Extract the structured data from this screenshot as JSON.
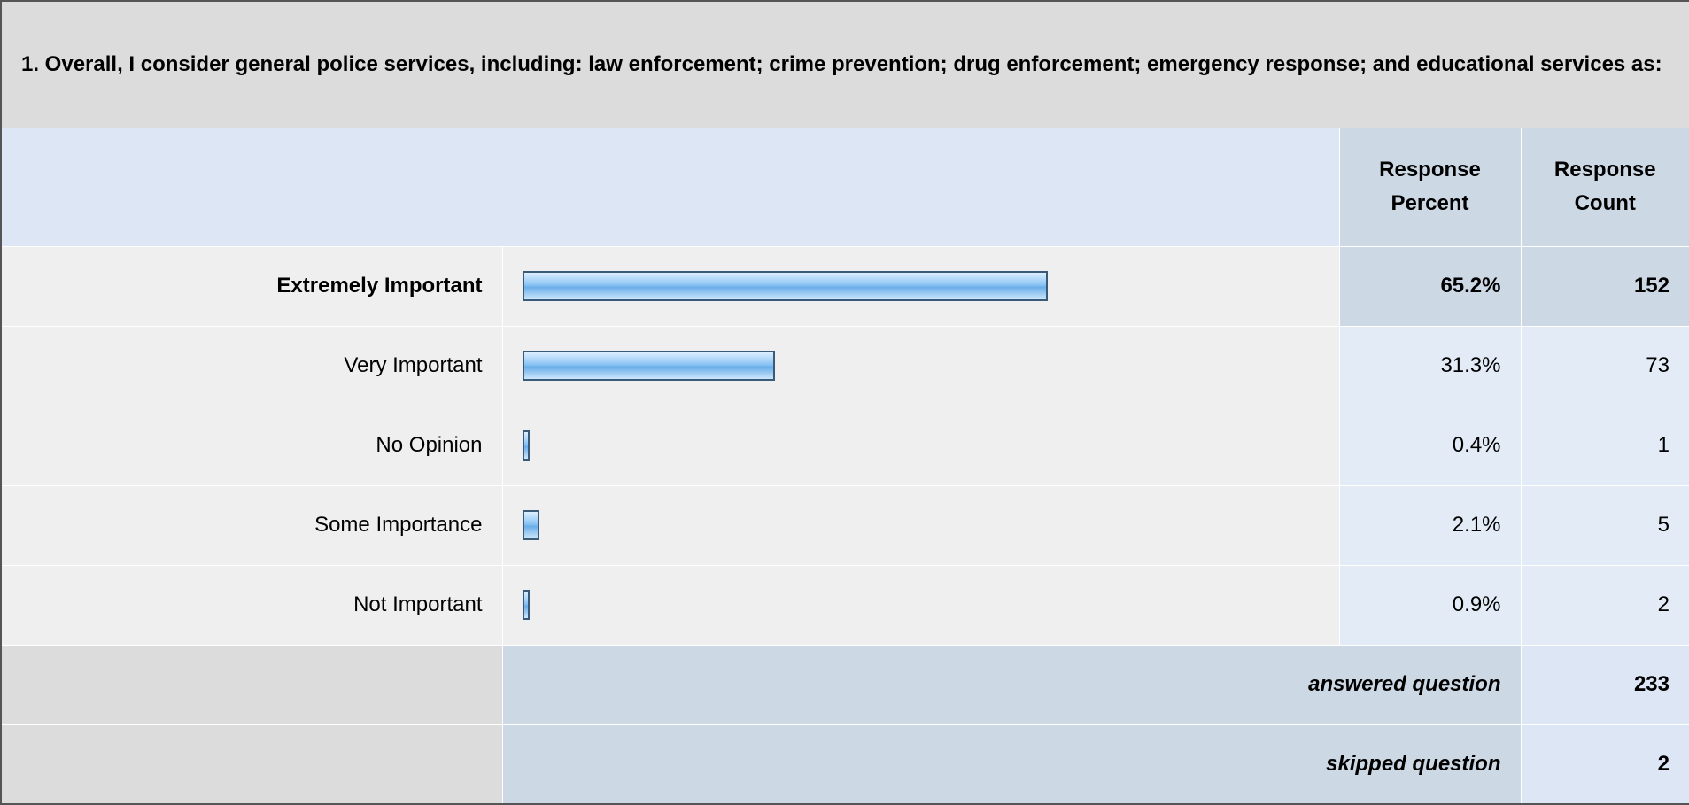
{
  "question": {
    "title": "1. Overall, I consider general police services, including: law enforcement; crime prevention; drug enforcement; emergency response; and educational services as:"
  },
  "table": {
    "headers": {
      "percent": "Response Percent",
      "count": "Response Count"
    },
    "categories": [
      "Extremely Important",
      "Very Important",
      "No Opinion",
      "Some Importance",
      "Not Important"
    ],
    "percent": {
      "values": [
        65.2,
        31.3,
        0.4,
        2.1,
        0.9
      ],
      "value_labels": [
        "65.2%",
        "31.3%",
        "0.4%",
        "2.1%",
        "0.9%"
      ]
    },
    "counts": [
      152,
      73,
      1,
      5,
      2
    ],
    "bold_row": 0,
    "bar_color": "#8cc4f4",
    "footer": [
      {
        "label": "answered question",
        "value": 233
      },
      {
        "label": "skipped question",
        "value": 2
      }
    ]
  }
}
